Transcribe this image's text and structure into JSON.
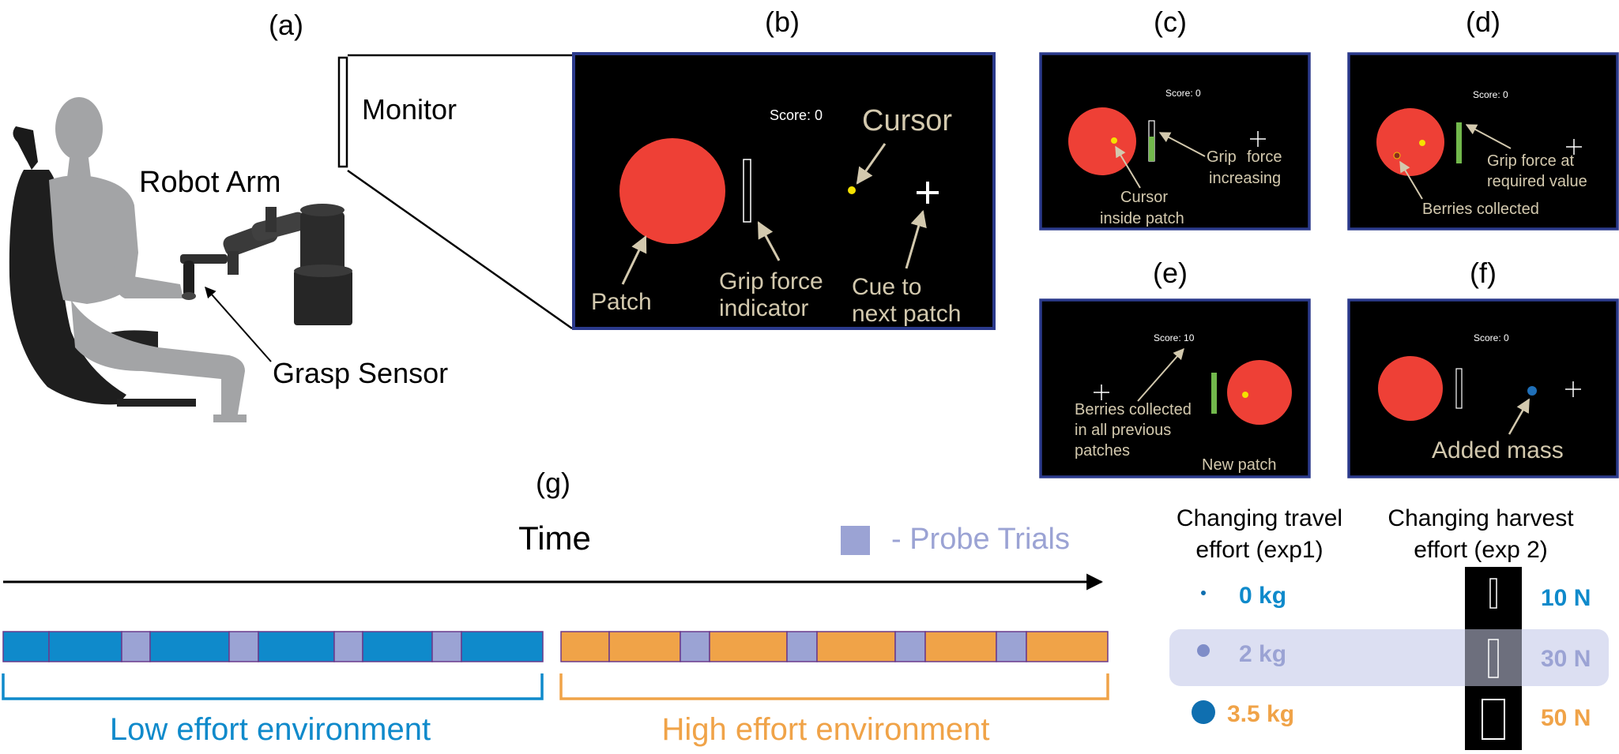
{
  "panels": {
    "a": {
      "label": "(a)",
      "monitor": "Monitor",
      "robot_arm": "Robot Arm",
      "grasp_sensor": "Grasp Sensor"
    },
    "b": {
      "label": "(b)",
      "score": "Score: 0",
      "cursor": "Cursor",
      "patch": "Patch",
      "grip_line1": "Grip force",
      "grip_line2": "indicator",
      "cue_line1": "Cue to",
      "cue_line2": "next patch"
    },
    "c": {
      "label": "(c)",
      "score": "Score: 0",
      "grip_line1": "Grip",
      "grip_line2": "force",
      "grip_line3": "increasing",
      "cursor_line1": "Cursor",
      "cursor_line2": "inside patch"
    },
    "d": {
      "label": "(d)",
      "score": "Score: 0",
      "grip_line1": "Grip force at",
      "grip_line2": "required value",
      "berries": "Berries collected"
    },
    "e": {
      "label": "(e)",
      "score": "Score: 10",
      "berries_line1": "Berries collected",
      "berries_line2": "in all previous",
      "berries_line3": "patches",
      "new_patch": "New patch"
    },
    "f": {
      "label": "(f)",
      "score": "Score: 0",
      "added_mass": "Added mass"
    },
    "g": {
      "label": "(g)",
      "time": "Time",
      "probe_legend": "- Probe Trials",
      "low_env": "Low effort environment",
      "high_env": "High effort environment",
      "travel_header_line1": "Changing travel",
      "travel_header_line2": "effort (exp1)",
      "harvest_header_line1": "Changing harvest",
      "harvest_header_line2": "effort (exp 2)",
      "rows": [
        {
          "mass": "0 kg",
          "force": "10 N"
        },
        {
          "mass": "2 kg",
          "force": "30 N"
        },
        {
          "mass": "3.5 kg",
          "force": "50 N"
        }
      ]
    }
  },
  "colors": {
    "patch_red": "#ee4036",
    "panel_border": "#2b3a8c",
    "annotation": "#d3c9ae",
    "grip_green": "#72b84c",
    "low_blue": "#0f8acb",
    "high_orange": "#f0a348",
    "probe_lavender": "#9ba3d4",
    "row_highlight": "#dcdff2"
  }
}
